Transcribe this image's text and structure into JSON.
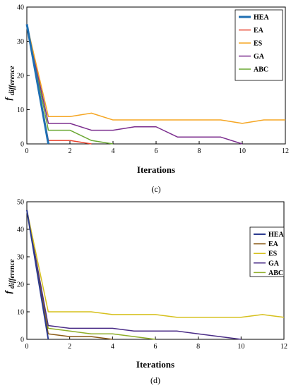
{
  "chart_data": [
    {
      "type": "line",
      "panel_label": "(c)",
      "xlabel": "Iterations",
      "ylabel_main": "f",
      "ylabel_sub": "difference",
      "xlim": [
        0,
        12
      ],
      "ylim": [
        0,
        40
      ],
      "xticks": [
        0,
        2,
        4,
        6,
        8,
        10,
        12
      ],
      "yticks": [
        0,
        10,
        20,
        30,
        40
      ],
      "legend": "top-right",
      "series": [
        {
          "name": "HEA",
          "color": "#1f6fb2",
          "width": 3,
          "x": [
            0,
            1
          ],
          "y": [
            35,
            0
          ]
        },
        {
          "name": "EA",
          "color": "#e8412c",
          "width": 1.5,
          "x": [
            0,
            1,
            2,
            3
          ],
          "y": [
            35,
            1,
            1,
            0
          ]
        },
        {
          "name": "ES",
          "color": "#f5a623",
          "width": 1.5,
          "x": [
            0,
            1,
            2,
            3,
            4,
            5,
            6,
            7,
            8,
            9,
            10,
            11,
            12
          ],
          "y": [
            35,
            8,
            8,
            9,
            7,
            7,
            7,
            7,
            7,
            7,
            6,
            7,
            7
          ]
        },
        {
          "name": "GA",
          "color": "#7b2d8e",
          "width": 1.5,
          "x": [
            0,
            1,
            2,
            3,
            4,
            5,
            6,
            7,
            8,
            9,
            10
          ],
          "y": [
            35,
            6,
            6,
            4,
            4,
            5,
            5,
            2,
            2,
            2,
            0
          ]
        },
        {
          "name": "ABC",
          "color": "#6aa832",
          "width": 1.5,
          "x": [
            0,
            1,
            2,
            3,
            4
          ],
          "y": [
            35,
            4,
            4,
            1,
            0
          ]
        }
      ]
    },
    {
      "type": "line",
      "panel_label": "(d)",
      "xlabel": "Iterations",
      "ylabel_main": "f",
      "ylabel_sub": "difference",
      "xlim": [
        0,
        12
      ],
      "ylim": [
        0,
        50
      ],
      "xticks": [
        0,
        2,
        4,
        6,
        8,
        10,
        12
      ],
      "yticks": [
        0,
        10,
        20,
        30,
        40,
        50
      ],
      "legend": "top-right",
      "series": [
        {
          "name": "HEA",
          "color": "#2b3a8f",
          "width": 2,
          "x": [
            0,
            1
          ],
          "y": [
            47,
            0
          ]
        },
        {
          "name": "EA",
          "color": "#8a5a16",
          "width": 1.5,
          "x": [
            0,
            1,
            2,
            3,
            4
          ],
          "y": [
            47,
            2,
            1,
            1,
            0
          ]
        },
        {
          "name": "ES",
          "color": "#d6c01c",
          "width": 1.5,
          "x": [
            0,
            1,
            2,
            3,
            4,
            5,
            6,
            7,
            8,
            9,
            10,
            11,
            12
          ],
          "y": [
            47,
            10,
            10,
            10,
            9,
            9,
            9,
            8,
            8,
            8,
            8,
            9,
            8
          ]
        },
        {
          "name": "GA",
          "color": "#4a2c87",
          "width": 1.5,
          "x": [
            0,
            1,
            2,
            3,
            4,
            5,
            6,
            7,
            8,
            9,
            10
          ],
          "y": [
            47,
            5,
            4,
            4,
            4,
            3,
            3,
            3,
            2,
            1,
            0
          ]
        },
        {
          "name": "ABC",
          "color": "#8fae28",
          "width": 1.5,
          "x": [
            0,
            1,
            2,
            3,
            4,
            5,
            6
          ],
          "y": [
            47,
            4,
            3,
            2,
            2,
            1,
            0
          ]
        }
      ]
    }
  ]
}
